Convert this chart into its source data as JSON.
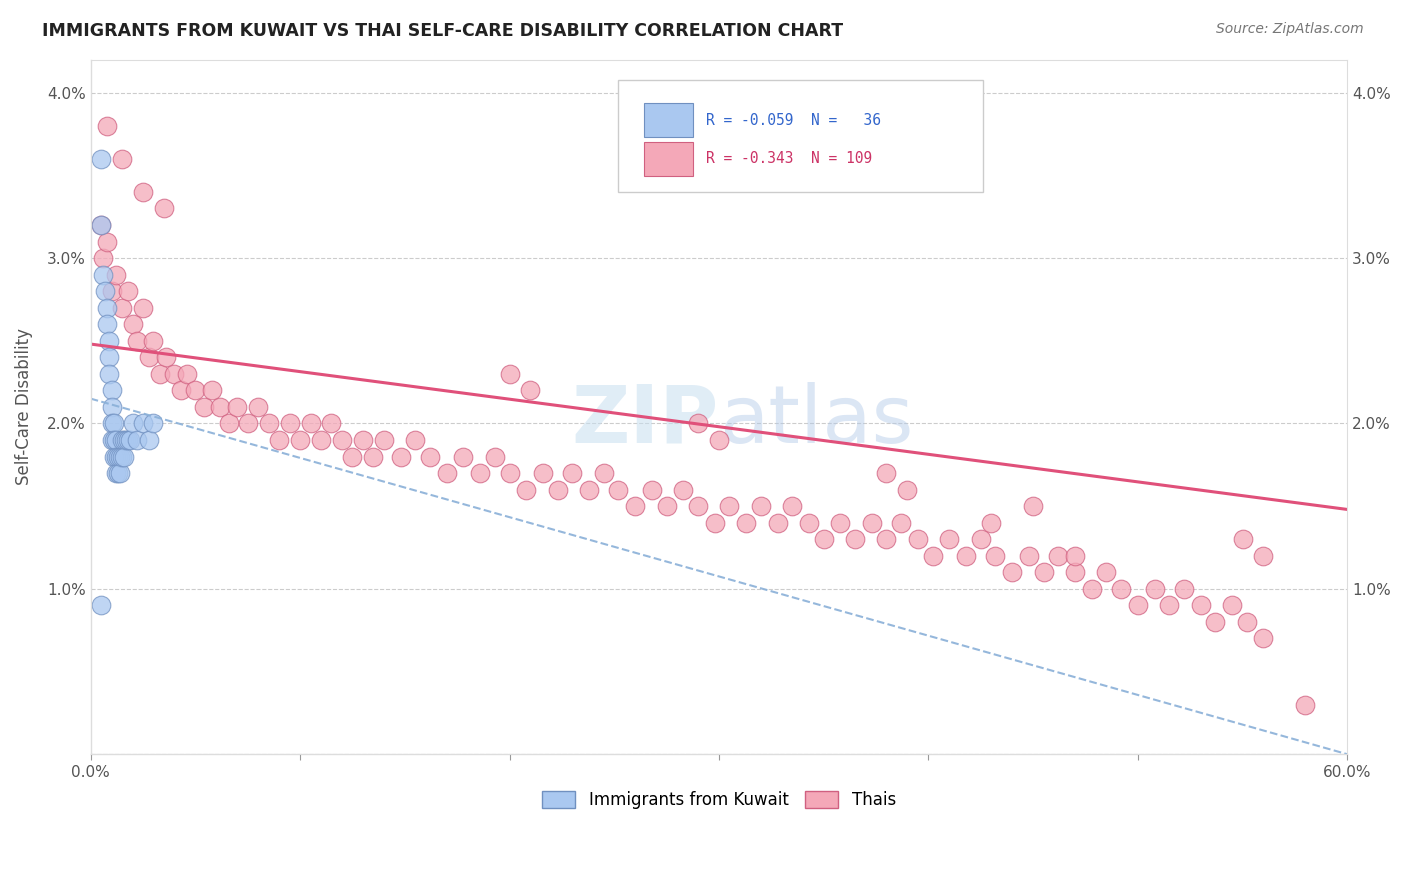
{
  "title": "IMMIGRANTS FROM KUWAIT VS THAI SELF-CARE DISABILITY CORRELATION CHART",
  "source": "Source: ZipAtlas.com",
  "ylabel": "Self-Care Disability",
  "xlim": [
    0.0,
    0.6
  ],
  "ylim": [
    0.0,
    0.042
  ],
  "xticks": [
    0.0,
    0.1,
    0.2,
    0.3,
    0.4,
    0.5,
    0.6
  ],
  "xticklabels": [
    "0.0%",
    "",
    "",
    "",
    "",
    "",
    "60.0%"
  ],
  "yticks": [
    0.0,
    0.01,
    0.02,
    0.03,
    0.04
  ],
  "yticklabels_left": [
    "",
    "1.0%",
    "2.0%",
    "3.0%",
    "4.0%"
  ],
  "yticklabels_right": [
    "",
    "1.0%",
    "2.0%",
    "3.0%",
    "4.0%"
  ],
  "color_kuwait": "#aac8f0",
  "color_kuwait_edge": "#7090c0",
  "color_thai": "#f4a8b8",
  "color_thai_edge": "#d06080",
  "color_kuwait_line": "#8ab0d8",
  "color_thai_line": "#e0507a",
  "background": "#ffffff",
  "kuwait_x": [
    0.005,
    0.005,
    0.006,
    0.007,
    0.008,
    0.008,
    0.009,
    0.009,
    0.009,
    0.01,
    0.01,
    0.01,
    0.01,
    0.011,
    0.011,
    0.011,
    0.012,
    0.012,
    0.012,
    0.013,
    0.013,
    0.014,
    0.014,
    0.015,
    0.015,
    0.016,
    0.016,
    0.017,
    0.018,
    0.019,
    0.02,
    0.022,
    0.025,
    0.028,
    0.03,
    0.005
  ],
  "kuwait_y": [
    0.036,
    0.032,
    0.029,
    0.028,
    0.027,
    0.026,
    0.025,
    0.024,
    0.023,
    0.022,
    0.021,
    0.02,
    0.019,
    0.02,
    0.019,
    0.018,
    0.019,
    0.018,
    0.017,
    0.018,
    0.017,
    0.018,
    0.017,
    0.019,
    0.018,
    0.019,
    0.018,
    0.019,
    0.019,
    0.019,
    0.02,
    0.019,
    0.02,
    0.019,
    0.02,
    0.009
  ],
  "thai_x": [
    0.005,
    0.006,
    0.008,
    0.01,
    0.012,
    0.015,
    0.018,
    0.02,
    0.022,
    0.025,
    0.028,
    0.03,
    0.033,
    0.036,
    0.04,
    0.043,
    0.046,
    0.05,
    0.054,
    0.058,
    0.062,
    0.066,
    0.07,
    0.075,
    0.08,
    0.085,
    0.09,
    0.095,
    0.1,
    0.105,
    0.11,
    0.115,
    0.12,
    0.125,
    0.13,
    0.135,
    0.14,
    0.148,
    0.155,
    0.162,
    0.17,
    0.178,
    0.186,
    0.193,
    0.2,
    0.208,
    0.216,
    0.223,
    0.23,
    0.238,
    0.245,
    0.252,
    0.26,
    0.268,
    0.275,
    0.283,
    0.29,
    0.298,
    0.305,
    0.313,
    0.32,
    0.328,
    0.335,
    0.343,
    0.35,
    0.358,
    0.365,
    0.373,
    0.38,
    0.387,
    0.395,
    0.402,
    0.41,
    0.418,
    0.425,
    0.432,
    0.44,
    0.448,
    0.455,
    0.462,
    0.47,
    0.478,
    0.485,
    0.492,
    0.5,
    0.508,
    0.515,
    0.522,
    0.53,
    0.537,
    0.545,
    0.552,
    0.56,
    0.008,
    0.015,
    0.025,
    0.035,
    0.2,
    0.21,
    0.38,
    0.39,
    0.43,
    0.47,
    0.29,
    0.3,
    0.45,
    0.55,
    0.56,
    0.58
  ],
  "thai_y": [
    0.032,
    0.03,
    0.031,
    0.028,
    0.029,
    0.027,
    0.028,
    0.026,
    0.025,
    0.027,
    0.024,
    0.025,
    0.023,
    0.024,
    0.023,
    0.022,
    0.023,
    0.022,
    0.021,
    0.022,
    0.021,
    0.02,
    0.021,
    0.02,
    0.021,
    0.02,
    0.019,
    0.02,
    0.019,
    0.02,
    0.019,
    0.02,
    0.019,
    0.018,
    0.019,
    0.018,
    0.019,
    0.018,
    0.019,
    0.018,
    0.017,
    0.018,
    0.017,
    0.018,
    0.017,
    0.016,
    0.017,
    0.016,
    0.017,
    0.016,
    0.017,
    0.016,
    0.015,
    0.016,
    0.015,
    0.016,
    0.015,
    0.014,
    0.015,
    0.014,
    0.015,
    0.014,
    0.015,
    0.014,
    0.013,
    0.014,
    0.013,
    0.014,
    0.013,
    0.014,
    0.013,
    0.012,
    0.013,
    0.012,
    0.013,
    0.012,
    0.011,
    0.012,
    0.011,
    0.012,
    0.011,
    0.01,
    0.011,
    0.01,
    0.009,
    0.01,
    0.009,
    0.01,
    0.009,
    0.008,
    0.009,
    0.008,
    0.007,
    0.038,
    0.036,
    0.034,
    0.033,
    0.023,
    0.022,
    0.017,
    0.016,
    0.014,
    0.012,
    0.02,
    0.019,
    0.015,
    0.013,
    0.012,
    0.003
  ],
  "thai_line_x0": 0.0,
  "thai_line_y0": 0.0248,
  "thai_line_x1": 0.6,
  "thai_line_y1": 0.0148,
  "kuwait_line_x0": 0.0,
  "kuwait_line_y0": 0.0215,
  "kuwait_line_x1": 0.6,
  "kuwait_line_y1": 0.0
}
